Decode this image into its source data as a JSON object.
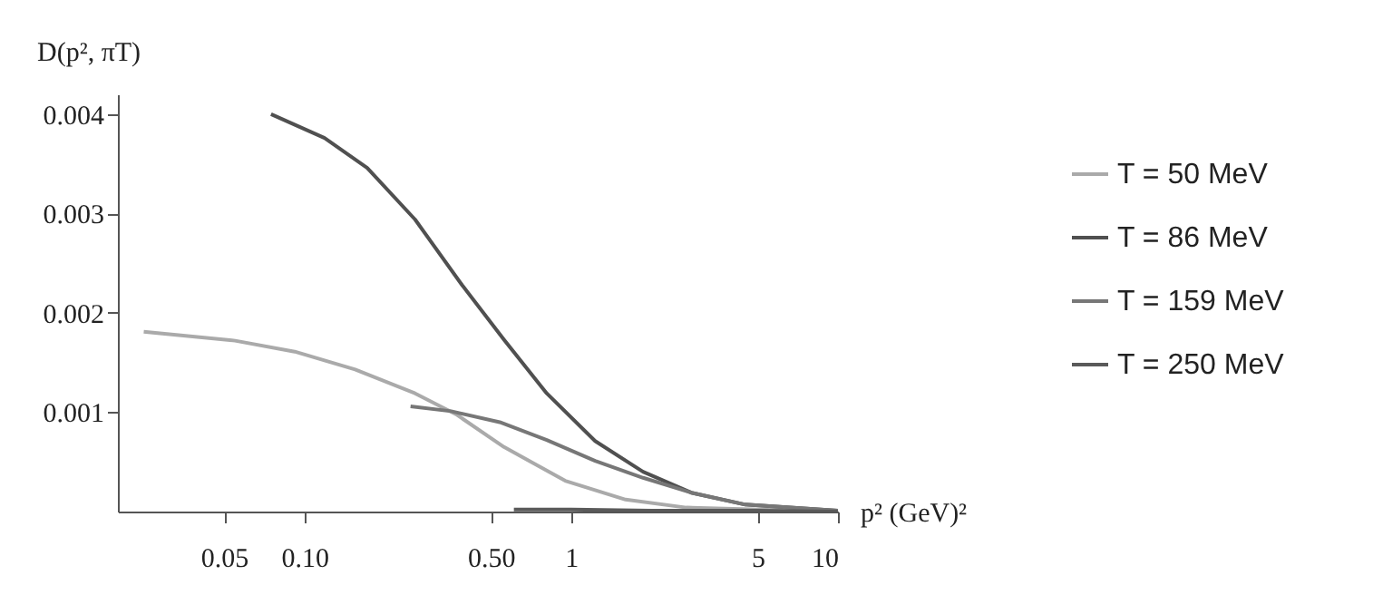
{
  "chart_data": {
    "type": "line",
    "xlabel": "p² (GeV)²",
    "ylabel": "D(p², πT)",
    "log": "x",
    "legend": "right",
    "grid": false,
    "line_style": "solid",
    "marker": "none",
    "xlim": [
      0.02,
      10
    ],
    "xticks": [
      0.05,
      {
        "value": 0.1,
        "label": "0.10"
      },
      {
        "value": 0.5,
        "label": "0.50"
      },
      1,
      5,
      10
    ],
    "ylim": [
      0,
      0.0042
    ],
    "yticks": [
      0.001,
      0.002,
      0.003,
      0.004
    ],
    "series": [
      {
        "name": "T = 50 MeV",
        "color": "#aaaaaa",
        "x": [
          0.025,
          0.055,
          0.092,
          0.155,
          0.26,
          0.37,
          0.56,
          0.95,
          1.6,
          2.7,
          9.8
        ],
        "values": [
          0.00181,
          0.00172,
          0.00161,
          0.00143,
          0.00119,
          0.00098,
          0.00065,
          0.00031,
          0.00012,
          4e-05,
          0
        ]
      },
      {
        "name": "T = 86 MeV",
        "color": "#505050",
        "x": [
          0.075,
          0.119,
          0.172,
          0.26,
          0.39,
          0.56,
          0.81,
          1.23,
          1.86,
          2.82,
          4.5,
          10
        ],
        "values": [
          0.004,
          0.00376,
          0.00346,
          0.00294,
          0.00228,
          0.00173,
          0.00119,
          0.00071,
          0.0004,
          0.00019,
          7e-05,
          1e-05
        ]
      },
      {
        "name": "T = 159 MeV",
        "color": "#777777",
        "x": [
          0.25,
          0.355,
          0.54,
          0.81,
          1.23,
          1.86,
          2.82,
          4.5,
          10
        ],
        "values": [
          0.00106,
          0.00101,
          0.0009,
          0.00072,
          0.00051,
          0.00034,
          0.00019,
          7e-05,
          1e-05
        ]
      },
      {
        "name": "T = 250 MeV",
        "color": "#5a5a5a",
        "x": [
          0.61,
          1,
          2,
          5,
          10
        ],
        "values": [
          2e-05,
          2e-05,
          1e-05,
          1e-05,
          0
        ]
      }
    ]
  }
}
